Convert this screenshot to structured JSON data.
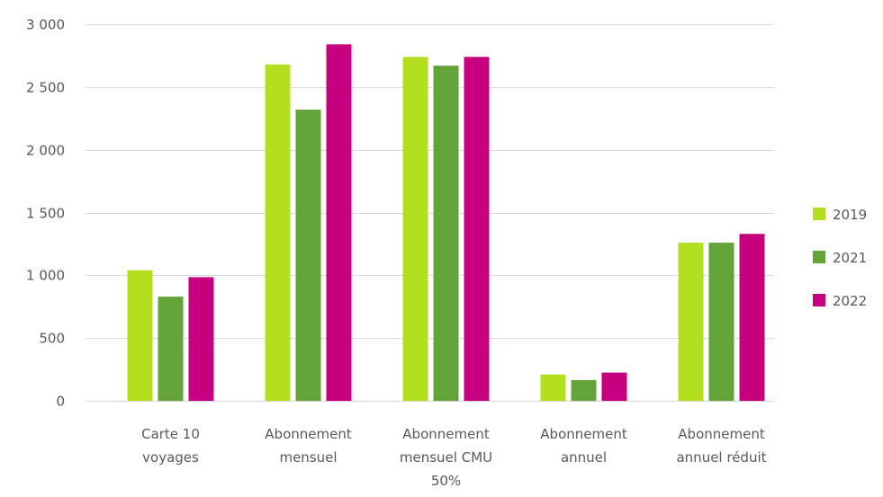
{
  "chart_data": {
    "type": "bar",
    "categories": [
      [
        "Carte 10",
        "voyages"
      ],
      [
        "Abonnement",
        "mensuel"
      ],
      [
        "Abonnement",
        "mensuel CMU",
        "50%"
      ],
      [
        "Abonnement",
        "annuel"
      ],
      [
        "Abonnement",
        "annuel réduit"
      ]
    ],
    "series": [
      {
        "name": "2019",
        "color": "#b2e01e",
        "values": [
          1040,
          2680,
          2740,
          210,
          1260
        ]
      },
      {
        "name": "2021",
        "color": "#63a33a",
        "values": [
          830,
          2320,
          2670,
          165,
          1260
        ]
      },
      {
        "name": "2022",
        "color": "#c6007e",
        "values": [
          985,
          2840,
          2740,
          225,
          1330
        ]
      }
    ],
    "ylim": [
      0,
      3000
    ],
    "yticks": [
      0,
      500,
      1000,
      1500,
      2000,
      2500,
      3000
    ],
    "ytick_labels": [
      "0",
      "500",
      "1 000",
      "1 500",
      "2 000",
      "2 500",
      "3 000"
    ],
    "grid": true,
    "legend_position": "right",
    "title": "",
    "xlabel": "",
    "ylabel": ""
  }
}
